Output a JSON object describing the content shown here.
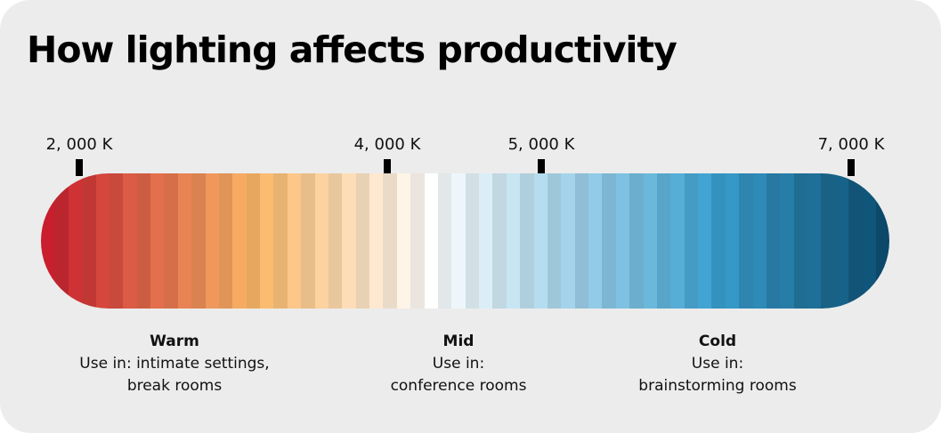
{
  "title": "How lighting affects productivity",
  "scale": {
    "min_k": 1750,
    "max_k": 7250,
    "ticks": [
      {
        "label": "2, 000 K",
        "value_k": 2000
      },
      {
        "label": "4, 000 K",
        "value_k": 4000
      },
      {
        "label": "5, 000 K",
        "value_k": 5000
      },
      {
        "label": "7, 000 K",
        "value_k": 7000
      }
    ]
  },
  "gradient": {
    "warm_color": "#c81e2e",
    "orange_color": "#fbb867",
    "neutral_color": "#ffffff",
    "light_blue_color": "#8fcae6",
    "mid_blue_color": "#3aa0d0",
    "cold_color": "#0c4e72"
  },
  "zones": [
    {
      "title": "Warm",
      "text": "Use in: intimate settings,\nbreak rooms"
    },
    {
      "title": "Mid",
      "text": "Use in:\nconference rooms"
    },
    {
      "title": "Cold",
      "text": "Use in:\nbrainstorming rooms"
    }
  ]
}
